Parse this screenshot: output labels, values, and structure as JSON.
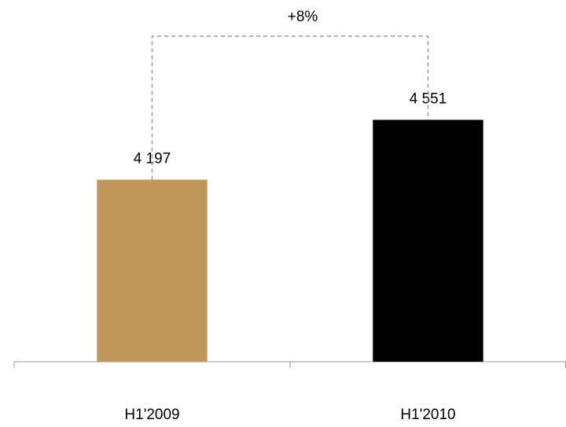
{
  "chart_data": {
    "type": "bar",
    "annotation": "+8%",
    "categories": [
      "H1'2009",
      "H1'2010"
    ],
    "values": [
      4197,
      4551
    ],
    "value_labels": [
      "4 197",
      "4 551"
    ],
    "colors": [
      "#c1965a",
      "#000000"
    ],
    "ylim": [
      3120,
      5260
    ]
  }
}
